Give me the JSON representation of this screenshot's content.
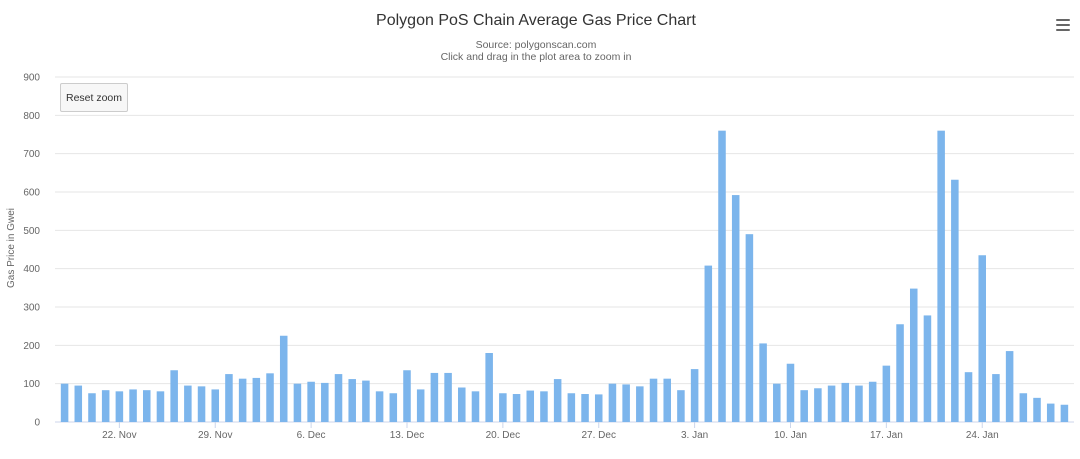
{
  "chart": {
    "title": "Polygon PoS Chain Average Gas Price Chart",
    "subtitle_source": "Source: polygonscan.com",
    "subtitle_hint": "Click and drag in the plot area to zoom in",
    "reset_zoom_label": "Reset zoom",
    "menu_icon": "hamburger-icon"
  },
  "chart_data": {
    "type": "bar",
    "title": "Polygon PoS Chain Average Gas Price Chart",
    "ylabel": "Gas Price in Gwei",
    "xlabel": "",
    "ylim": [
      0,
      900
    ],
    "yticks": [
      0,
      100,
      200,
      300,
      400,
      500,
      600,
      700,
      800,
      900
    ],
    "grid": true,
    "legend": "none",
    "bar_color": "#7cb5ec",
    "x_start": "2021-11-18",
    "x_end": "2022-01-30",
    "x_tick_labels": [
      {
        "date": "2021-11-22",
        "label": "22. Nov"
      },
      {
        "date": "2021-11-29",
        "label": "29. Nov"
      },
      {
        "date": "2021-12-06",
        "label": "6. Dec"
      },
      {
        "date": "2021-12-13",
        "label": "13. Dec"
      },
      {
        "date": "2021-12-20",
        "label": "20. Dec"
      },
      {
        "date": "2021-12-27",
        "label": "27. Dec"
      },
      {
        "date": "2022-01-03",
        "label": "3. Jan"
      },
      {
        "date": "2022-01-10",
        "label": "10. Jan"
      },
      {
        "date": "2022-01-17",
        "label": "17. Jan"
      },
      {
        "date": "2022-01-24",
        "label": "24. Jan"
      }
    ],
    "series": [
      {
        "values": [
          [
            "2021-11-18",
            100
          ],
          [
            "2021-11-19",
            95
          ],
          [
            "2021-11-20",
            75
          ],
          [
            "2021-11-21",
            83
          ],
          [
            "2021-11-22",
            80
          ],
          [
            "2021-11-23",
            85
          ],
          [
            "2021-11-24",
            83
          ],
          [
            "2021-11-25",
            80
          ],
          [
            "2021-11-26",
            135
          ],
          [
            "2021-11-27",
            95
          ],
          [
            "2021-11-28",
            93
          ],
          [
            "2021-11-29",
            85
          ],
          [
            "2021-11-30",
            125
          ],
          [
            "2021-12-01",
            113
          ],
          [
            "2021-12-02",
            115
          ],
          [
            "2021-12-03",
            127
          ],
          [
            "2021-12-04",
            225
          ],
          [
            "2021-12-05",
            100
          ],
          [
            "2021-12-06",
            105
          ],
          [
            "2021-12-07",
            102
          ],
          [
            "2021-12-08",
            125
          ],
          [
            "2021-12-09",
            112
          ],
          [
            "2021-12-10",
            108
          ],
          [
            "2021-12-11",
            80
          ],
          [
            "2021-12-12",
            75
          ],
          [
            "2021-12-13",
            135
          ],
          [
            "2021-12-14",
            85
          ],
          [
            "2021-12-15",
            128
          ],
          [
            "2021-12-16",
            128
          ],
          [
            "2021-12-17",
            90
          ],
          [
            "2021-12-18",
            80
          ],
          [
            "2021-12-19",
            180
          ],
          [
            "2021-12-20",
            75
          ],
          [
            "2021-12-21",
            73
          ],
          [
            "2021-12-22",
            82
          ],
          [
            "2021-12-23",
            80
          ],
          [
            "2021-12-24",
            112
          ],
          [
            "2021-12-25",
            75
          ],
          [
            "2021-12-26",
            73
          ],
          [
            "2021-12-27",
            72
          ],
          [
            "2021-12-28",
            100
          ],
          [
            "2021-12-29",
            98
          ],
          [
            "2021-12-30",
            93
          ],
          [
            "2021-12-31",
            113
          ],
          [
            "2022-01-01",
            113
          ],
          [
            "2022-01-02",
            83
          ],
          [
            "2022-01-03",
            138
          ],
          [
            "2022-01-04",
            408
          ],
          [
            "2022-01-05",
            760
          ],
          [
            "2022-01-06",
            592
          ],
          [
            "2022-01-07",
            490
          ],
          [
            "2022-01-08",
            205
          ],
          [
            "2022-01-09",
            100
          ],
          [
            "2022-01-10",
            152
          ],
          [
            "2022-01-11",
            83
          ],
          [
            "2022-01-12",
            88
          ],
          [
            "2022-01-13",
            95
          ],
          [
            "2022-01-14",
            102
          ],
          [
            "2022-01-15",
            95
          ],
          [
            "2022-01-16",
            105
          ],
          [
            "2022-01-17",
            147
          ],
          [
            "2022-01-18",
            255
          ],
          [
            "2022-01-19",
            348
          ],
          [
            "2022-01-20",
            278
          ],
          [
            "2022-01-21",
            760
          ],
          [
            "2022-01-22",
            632
          ],
          [
            "2022-01-23",
            130
          ],
          [
            "2022-01-24",
            435
          ],
          [
            "2022-01-25",
            125
          ],
          [
            "2022-01-26",
            185
          ],
          [
            "2022-01-27",
            75
          ],
          [
            "2022-01-28",
            63
          ],
          [
            "2022-01-29",
            48
          ],
          [
            "2022-01-30",
            45
          ]
        ]
      }
    ]
  }
}
